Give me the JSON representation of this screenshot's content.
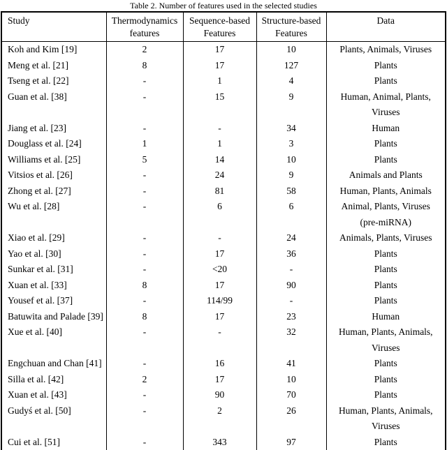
{
  "caption": "Table 2. Number of features used in the selected studies",
  "table": {
    "columns": [
      "Study",
      "Thermodynamics\nfeatures",
      "Sequence-based\nFeatures",
      "Structure-based\nFeatures",
      "Data"
    ],
    "rows": [
      {
        "study": "Koh and Kim [19]",
        "thermo": "2",
        "seq": "17",
        "struct": "10",
        "data": "Plants, Animals, Viruses"
      },
      {
        "study": "Meng et al. [21]",
        "thermo": "8",
        "seq": "17",
        "struct": "127",
        "data": "Plants"
      },
      {
        "study": "Tseng et al. [22]",
        "thermo": "-",
        "seq": "1",
        "struct": "4",
        "data": "Plants"
      },
      {
        "study": "Guan et al. [38]",
        "thermo": "-",
        "seq": "15",
        "struct": "9",
        "data": "Human, Animal, Plants,\nViruses"
      },
      {
        "study": "Jiang et al. [23]",
        "thermo": "-",
        "seq": "-",
        "struct": "34",
        "data": "Human"
      },
      {
        "study": "Douglass et al. [24]",
        "thermo": "1",
        "seq": "1",
        "struct": "3",
        "data": "Plants"
      },
      {
        "study": "Williams et al. [25]",
        "thermo": "5",
        "seq": "14",
        "struct": "10",
        "data": "Plants"
      },
      {
        "study": "Vitsios et al. [26]",
        "thermo": "-",
        "seq": "24",
        "struct": "9",
        "data": "Animals and Plants"
      },
      {
        "study": "Zhong et al. [27]",
        "thermo": "-",
        "seq": "81",
        "struct": "58",
        "data": "Human, Plants, Animals"
      },
      {
        "study": "Wu et al. [28]",
        "thermo": "-",
        "seq": "6",
        "struct": "6",
        "data": "Animal, Plants, Viruses\n(pre-miRNA)"
      },
      {
        "study": "Xiao et al. [29]",
        "thermo": "-",
        "seq": "-",
        "struct": "24",
        "data": "Animals, Plants, Viruses"
      },
      {
        "study": "Yao et al. [30]",
        "thermo": "-",
        "seq": "17",
        "struct": "36",
        "data": "Plants"
      },
      {
        "study": "Sunkar et al. [31]",
        "thermo": "-",
        "seq": "<20",
        "struct": "-",
        "data": "Plants"
      },
      {
        "study": "Xuan et al. [33]",
        "thermo": "8",
        "seq": "17",
        "struct": "90",
        "data": "Plants"
      },
      {
        "study": "Yousef et al. [37]",
        "thermo": "-",
        "seq": "114/99",
        "struct": "-",
        "data": "Plants"
      },
      {
        "study": "Batuwita and Palade [39]",
        "thermo": "8",
        "seq": "17",
        "struct": "23",
        "data": "Human"
      },
      {
        "study": "Xue et al. [40]",
        "thermo": "-",
        "seq": "-",
        "struct": "32",
        "data": "Human, Plants, Animals,\nViruses"
      },
      {
        "study": "Engchuan and Chan [41]",
        "thermo": "-",
        "seq": "16",
        "struct": "41",
        "data": "Plants"
      },
      {
        "study": "Silla et al. [42]",
        "thermo": "2",
        "seq": "17",
        "struct": "10",
        "data": "Plants"
      },
      {
        "study": "Xuan et al. [43]",
        "thermo": "-",
        "seq": "90",
        "struct": "70",
        "data": "Plants"
      },
      {
        "study": "Gudyś et al. [50]",
        "thermo": "-",
        "seq": "2",
        "struct": "26",
        "data": "Human, Plants, Animals,\nViruses"
      },
      {
        "study": "Cui et al. [51]",
        "thermo": "-",
        "seq": "343",
        "struct": "97",
        "data": "Plants"
      }
    ]
  }
}
